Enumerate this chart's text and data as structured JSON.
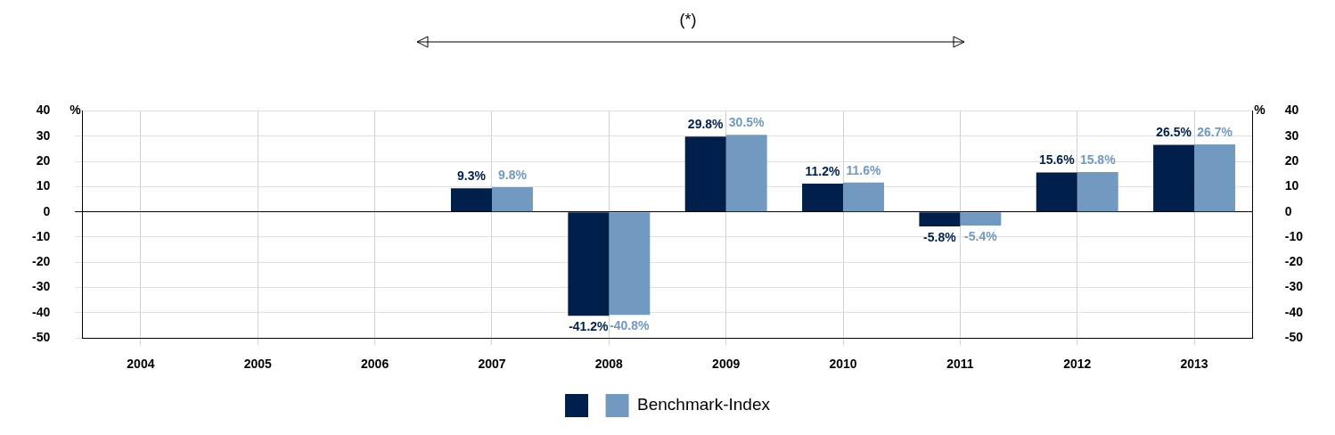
{
  "chart_data": {
    "type": "bar",
    "categories": [
      "2004",
      "2005",
      "2006",
      "2007",
      "2008",
      "2009",
      "2010",
      "2011",
      "2012",
      "2013"
    ],
    "series": [
      {
        "color": "#001f4b",
        "values": [
          null,
          null,
          null,
          9.3,
          -41.2,
          29.8,
          11.2,
          -5.8,
          15.6,
          26.5
        ],
        "value_labels": [
          null,
          null,
          null,
          "9.3%",
          "-41.2%",
          "29.8%",
          "11.2%",
          "-5.8%",
          "15.6%",
          "26.5%"
        ]
      },
      {
        "name": "Benchmark-Index",
        "color": "#7299c0",
        "values": [
          null,
          null,
          null,
          9.8,
          -40.8,
          30.5,
          11.6,
          -5.4,
          15.8,
          26.7
        ],
        "value_labels": [
          null,
          null,
          null,
          "9.8%",
          "-40.8%",
          "30.5%",
          "11.6%",
          "-5.4%",
          "15.8%",
          "26.7%"
        ]
      }
    ],
    "ylabel": "%",
    "y2label": "%",
    "ylim": [
      -50,
      40
    ],
    "yticks": [
      -50,
      -40,
      -30,
      -20,
      -10,
      0,
      10,
      20,
      30,
      40
    ],
    "y2lim": [
      -50,
      40
    ],
    "y2ticks": [
      -50,
      -40,
      -30,
      -20,
      -10,
      0,
      10,
      20,
      30,
      40
    ],
    "annotations": [
      "(*)"
    ],
    "grid": true,
    "legend": "bottom"
  }
}
